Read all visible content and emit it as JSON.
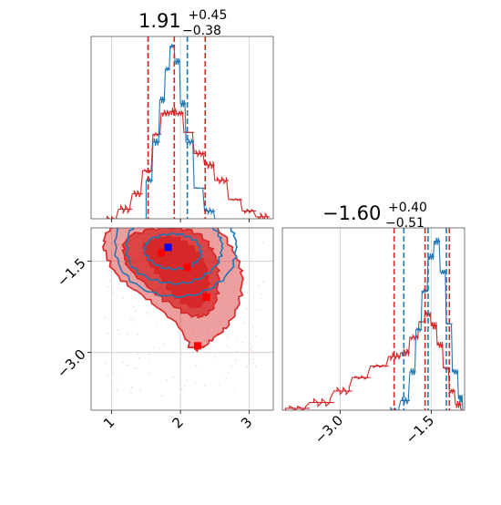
{
  "chart_data": {
    "type": "corner",
    "colors": {
      "blue": "#1f77b4",
      "red": "#d62728",
      "marker_blue": "#0000ff",
      "marker_red": "#ff0000",
      "grid": "#cccccc"
    },
    "series": [
      {
        "color": "#1f77b4",
        "p1_quantiles": [
          1.53,
          2.1,
          2.36
        ],
        "p2_quantiles": [
          -1.95,
          -1.55,
          -1.25
        ]
      },
      {
        "color": "#d62728",
        "p1_quantiles": [
          1.53,
          1.91,
          2.36
        ],
        "p2_quantiles": [
          -2.11,
          -1.6,
          -1.2
        ]
      }
    ],
    "panels": {
      "p1_hist": {
        "title": {
          "value": "1.91",
          "plus": "+0.45",
          "minus": "−0.38"
        },
        "xlim": [
          0.7,
          3.35
        ],
        "x_grid": [
          1,
          2,
          3
        ],
        "blue_hist": [
          [
            1.5,
            0.2
          ],
          [
            1.6,
            0.4
          ],
          [
            1.7,
            0.62
          ],
          [
            1.78,
            0.78
          ],
          [
            1.85,
            0.9
          ],
          [
            1.92,
            0.82
          ],
          [
            2.0,
            0.6
          ],
          [
            2.08,
            0.4
          ],
          [
            2.2,
            0.16
          ],
          [
            2.35,
            0.04
          ],
          [
            2.5,
            0.0
          ]
        ],
        "red_hist": [
          [
            0.9,
            0.0
          ],
          [
            1.1,
            0.05
          ],
          [
            1.3,
            0.13
          ],
          [
            1.45,
            0.25
          ],
          [
            1.6,
            0.44
          ],
          [
            1.72,
            0.55
          ],
          [
            1.85,
            0.56
          ],
          [
            1.95,
            0.55
          ],
          [
            2.05,
            0.45
          ],
          [
            2.2,
            0.34
          ],
          [
            2.35,
            0.28
          ],
          [
            2.5,
            0.2
          ],
          [
            2.7,
            0.1
          ],
          [
            2.9,
            0.04
          ],
          [
            3.1,
            0.01
          ],
          [
            3.3,
            0.0
          ]
        ]
      },
      "p2_hist": {
        "title": {
          "value": "−1.60",
          "plus": "+0.40",
          "minus": "−0.51"
        },
        "xlim": [
          -3.95,
          -0.95
        ],
        "x_ticks": [
          -3.0,
          -1.5
        ],
        "x_tick_labels": [
          "−3.0",
          "−1.5"
        ],
        "blue_hist": [
          [
            -2.2,
            0.0
          ],
          [
            -2.0,
            0.05
          ],
          [
            -1.85,
            0.2
          ],
          [
            -1.75,
            0.42
          ],
          [
            -1.65,
            0.62
          ],
          [
            -1.55,
            0.8
          ],
          [
            -1.45,
            0.88
          ],
          [
            -1.35,
            0.72
          ],
          [
            -1.25,
            0.45
          ],
          [
            -1.15,
            0.2
          ],
          [
            -1.05,
            0.06
          ],
          [
            -0.98,
            0.0
          ]
        ],
        "red_hist": [
          [
            -3.9,
            0.01
          ],
          [
            -3.5,
            0.04
          ],
          [
            -3.1,
            0.1
          ],
          [
            -2.8,
            0.17
          ],
          [
            -2.5,
            0.23
          ],
          [
            -2.2,
            0.28
          ],
          [
            -2.0,
            0.3
          ],
          [
            -1.85,
            0.38
          ],
          [
            -1.7,
            0.46
          ],
          [
            -1.6,
            0.5
          ],
          [
            -1.5,
            0.44
          ],
          [
            -1.4,
            0.34
          ],
          [
            -1.3,
            0.22
          ],
          [
            -1.2,
            0.1
          ],
          [
            -1.1,
            0.03
          ],
          [
            -1.0,
            0.0
          ]
        ]
      },
      "joint": {
        "xlim": [
          0.7,
          3.35
        ],
        "ylim": [
          -3.95,
          -0.95
        ],
        "x_ticks": [
          1,
          2,
          3
        ],
        "x_tick_labels": [
          "1",
          "2",
          "3"
        ],
        "y_ticks": [
          -1.5,
          -3.0
        ],
        "y_tick_labels": [
          "−1.5",
          "−3.0"
        ],
        "blue_markers": [
          [
            1.82,
            -1.27
          ]
        ],
        "red_markers": [
          [
            1.72,
            -1.36
          ],
          [
            2.38,
            -2.09
          ],
          [
            2.25,
            -2.89
          ],
          [
            2.1,
            -1.6
          ]
        ],
        "red_contours": [
          {
            "level": 0.39,
            "opacity": 0.95,
            "pts": [
              [
                1.5,
                -1.2
              ],
              [
                1.85,
                -1.1
              ],
              [
                2.15,
                -1.25
              ],
              [
                2.35,
                -1.55
              ],
              [
                2.4,
                -1.95
              ],
              [
                2.25,
                -2.25
              ],
              [
                1.95,
                -2.1
              ],
              [
                1.7,
                -1.75
              ],
              [
                1.5,
                -1.45
              ]
            ]
          },
          {
            "level": 0.86,
            "opacity": 0.75,
            "pts": [
              [
                1.25,
                -1.1
              ],
              [
                1.8,
                -0.95
              ],
              [
                2.25,
                -1.05
              ],
              [
                2.5,
                -1.4
              ],
              [
                2.55,
                -1.9
              ],
              [
                2.45,
                -2.3
              ],
              [
                2.2,
                -2.4
              ],
              [
                1.85,
                -2.2
              ],
              [
                1.5,
                -1.9
              ],
              [
                1.2,
                -1.5
              ]
            ]
          },
          {
            "level": 1.18,
            "opacity": 0.45,
            "pts": [
              [
                1.0,
                -0.95
              ],
              [
                1.7,
                -0.75
              ],
              [
                2.45,
                -0.9
              ],
              [
                2.8,
                -1.4
              ],
              [
                2.9,
                -1.9
              ],
              [
                2.75,
                -2.45
              ],
              [
                2.5,
                -2.75
              ],
              [
                2.2,
                -2.95
              ],
              [
                1.95,
                -2.55
              ],
              [
                1.55,
                -2.15
              ],
              [
                1.1,
                -1.75
              ],
              [
                0.9,
                -1.3
              ]
            ]
          }
        ],
        "blue_contours": [
          {
            "level": 0.39,
            "pts": [
              [
                1.55,
                -1.15
              ],
              [
                1.9,
                -1.05
              ],
              [
                2.2,
                -1.15
              ],
              [
                2.3,
                -1.4
              ],
              [
                2.1,
                -1.6
              ],
              [
                1.75,
                -1.6
              ],
              [
                1.5,
                -1.4
              ]
            ]
          },
          {
            "level": 0.86,
            "pts": [
              [
                1.3,
                -0.95
              ],
              [
                1.85,
                -0.8
              ],
              [
                2.4,
                -0.9
              ],
              [
                2.6,
                -1.2
              ],
              [
                2.5,
                -1.6
              ],
              [
                2.1,
                -1.85
              ],
              [
                1.6,
                -1.8
              ],
              [
                1.25,
                -1.5
              ]
            ]
          },
          {
            "level": 1.18,
            "pts": [
              [
                1.15,
                -0.85
              ],
              [
                1.85,
                -0.65
              ],
              [
                2.55,
                -0.78
              ],
              [
                2.8,
                -1.15
              ],
              [
                2.7,
                -1.7
              ],
              [
                2.2,
                -2.05
              ],
              [
                1.55,
                -2.0
              ],
              [
                1.1,
                -1.55
              ]
            ]
          }
        ]
      }
    }
  }
}
